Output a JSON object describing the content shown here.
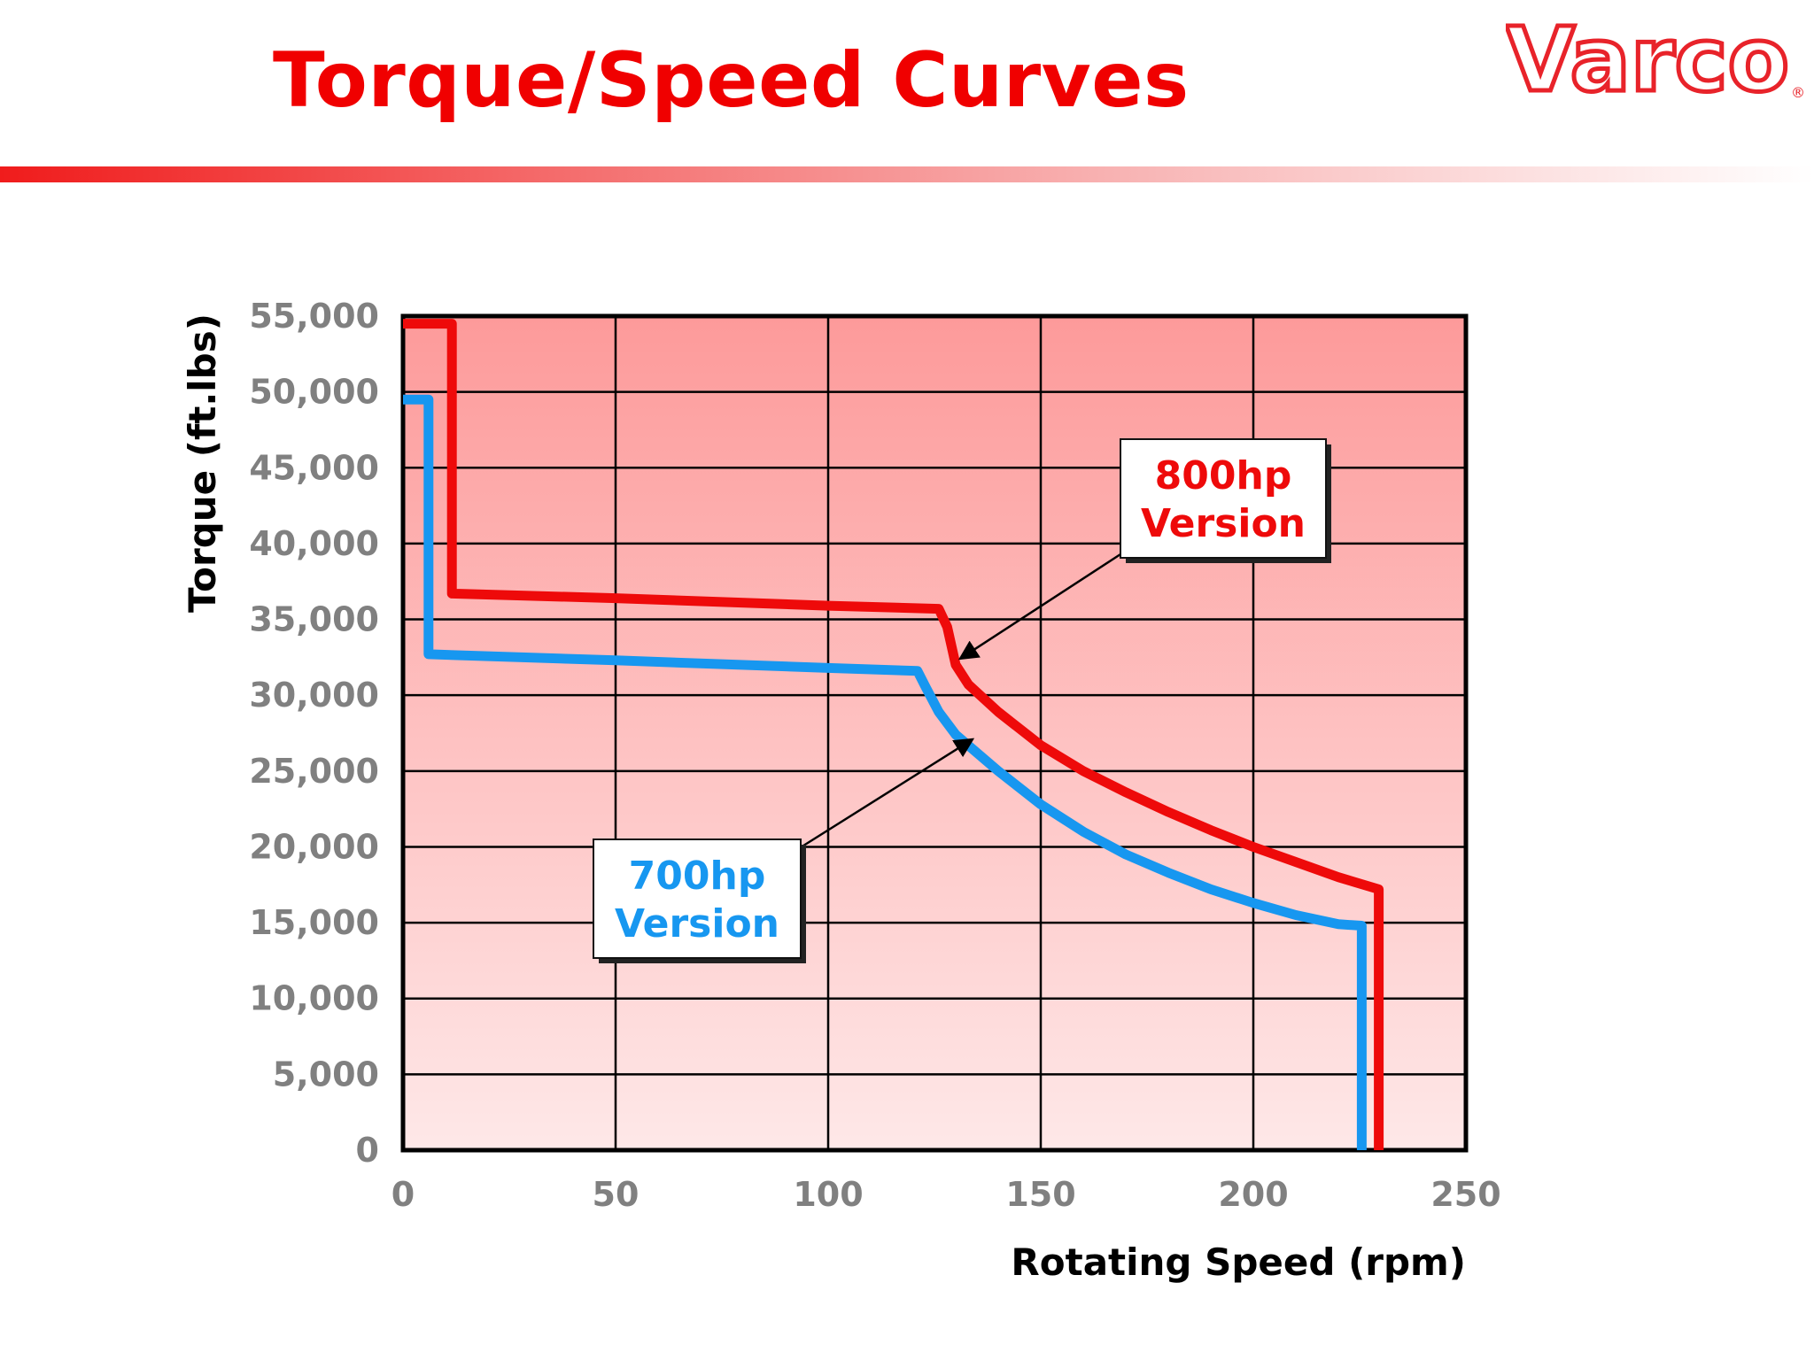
{
  "slide": {
    "title": "Torque/Speed Curves",
    "logo_text": "Varco",
    "logo_mark": "®",
    "title_color": "#f00000"
  },
  "chart_data": {
    "type": "line",
    "title": "",
    "xlabel": "Rotating Speed (rpm)",
    "ylabel": "Torque (ft.lbs)",
    "xlim": [
      0,
      250
    ],
    "ylim": [
      0,
      55000
    ],
    "x_ticks": [
      0,
      50,
      100,
      150,
      200,
      250
    ],
    "x_tick_labels": [
      "0",
      "50",
      "100",
      "150",
      "200",
      "250"
    ],
    "y_ticks": [
      0,
      5000,
      10000,
      15000,
      20000,
      25000,
      30000,
      35000,
      40000,
      45000,
      50000,
      55000
    ],
    "y_tick_labels": [
      "0",
      "5,000",
      "10,000",
      "15,000",
      "20,000",
      "25,000",
      "30,000",
      "35,000",
      "40,000",
      "45,000",
      "50,000",
      "55,000"
    ],
    "grid": true,
    "background": "red gradient",
    "series": [
      {
        "name": "800hp Version",
        "color": "#ee0a0a",
        "x": [
          0,
          11.5,
          11.5,
          50,
          100,
          126,
          128,
          130,
          133,
          140,
          150,
          160,
          170,
          180,
          190,
          200,
          210,
          220,
          229.5,
          229.5
        ],
        "y": [
          54500,
          54500,
          36700,
          36400,
          35900,
          35700,
          34500,
          32000,
          30700,
          28900,
          26700,
          25000,
          23600,
          22300,
          21100,
          20000,
          19000,
          18000,
          17200,
          0
        ]
      },
      {
        "name": "700hp Version",
        "color": "#1797f0",
        "x": [
          0,
          6,
          6,
          50,
          100,
          121,
          123,
          126,
          130,
          140,
          150,
          160,
          170,
          180,
          190,
          200,
          210,
          220,
          225.5,
          225.5
        ],
        "y": [
          49500,
          49500,
          32700,
          32300,
          31800,
          31600,
          30500,
          28900,
          27400,
          25000,
          22800,
          21000,
          19500,
          18300,
          17200,
          16300,
          15500,
          14900,
          14800,
          0
        ]
      }
    ],
    "annotations": [
      {
        "line1": "800hp",
        "line2": "Version",
        "color": "#ee0a0a",
        "points_to": [
          131,
          32400
        ]
      },
      {
        "line1": "700hp",
        "line2": "Version",
        "color": "#1797f0",
        "points_to": [
          134,
          27100
        ]
      }
    ]
  }
}
